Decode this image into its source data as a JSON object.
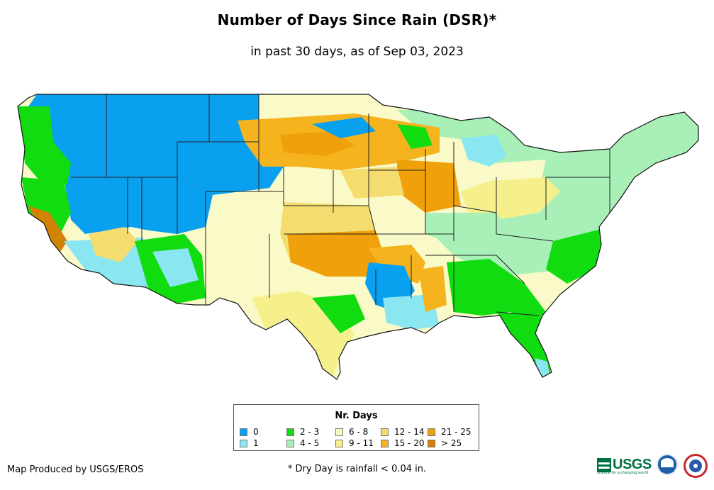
{
  "header": {
    "title": "Number of Days Since Rain (DSR)*",
    "subtitle": "in past 30 days, as of Sep 03, 2023"
  },
  "legend": {
    "title": "Nr. Days",
    "items": [
      {
        "label": "0",
        "color": "#0aa0f0"
      },
      {
        "label": "1",
        "color": "#8ae6f0"
      },
      {
        "label": "2 - 3",
        "color": "#10dc10"
      },
      {
        "label": "4 - 5",
        "color": "#a8f0b8"
      },
      {
        "label": "6 - 8",
        "color": "#fafac8"
      },
      {
        "label": "9 - 11",
        "color": "#f5f08c"
      },
      {
        "label": "12 - 14",
        "color": "#f5dc6e"
      },
      {
        "label": "15 - 20",
        "color": "#f5b41e"
      },
      {
        "label": "21 - 25",
        "color": "#f0a00a"
      },
      {
        "label": "> 25",
        "color": "#d28205"
      }
    ]
  },
  "footer": {
    "credit": "Map Produced by USGS/EROS",
    "footnote": "* Dry Day is rainfall < 0.04 in."
  },
  "logos": {
    "usgs": "USGS",
    "usgs_tagline": "science for a changing world",
    "noaa_icon": "noaa-icon",
    "nws_icon": "nws-icon"
  }
}
